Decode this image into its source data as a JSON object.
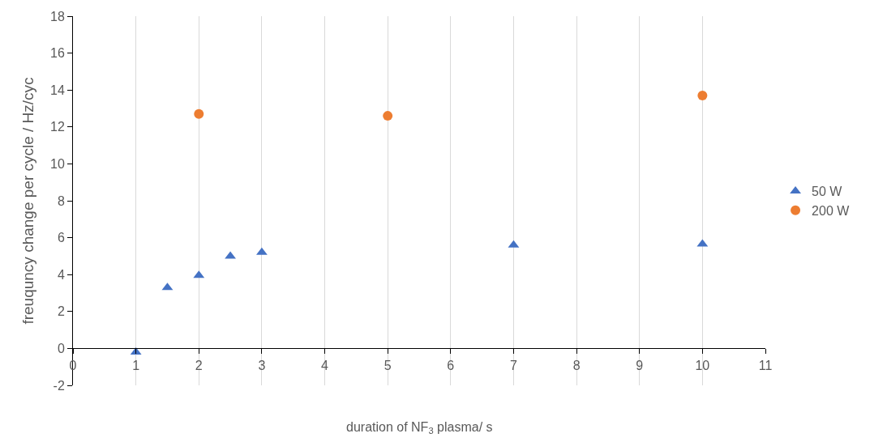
{
  "chart_data": {
    "type": "scatter",
    "xlabel": "duration of NF$_{3}$ plasma/ s",
    "ylabel": "freuquncy change per cycle / Hz/cyc",
    "series": [
      {
        "name": "50 W",
        "color": "#4472c4",
        "marker": "triangle",
        "x": [
          1,
          1.5,
          2,
          2.5,
          3,
          7,
          10
        ],
        "values": [
          -0.2,
          3.3,
          3.95,
          5.0,
          5.2,
          5.6,
          5.65
        ]
      },
      {
        "name": "200 W",
        "color": "#ed7d31",
        "marker": "circle",
        "x": [
          2,
          5,
          10
        ],
        "values": [
          12.7,
          12.6,
          13.7
        ]
      }
    ],
    "xlim": [
      0,
      11
    ],
    "xticks": [
      0,
      1,
      2,
      3,
      4,
      5,
      6,
      7,
      8,
      9,
      10,
      11
    ],
    "ylim": [
      -2,
      18
    ],
    "yticks": [
      -2,
      0,
      2,
      4,
      6,
      8,
      10,
      12,
      14,
      16,
      18
    ],
    "grid": "x",
    "legend": "right"
  }
}
